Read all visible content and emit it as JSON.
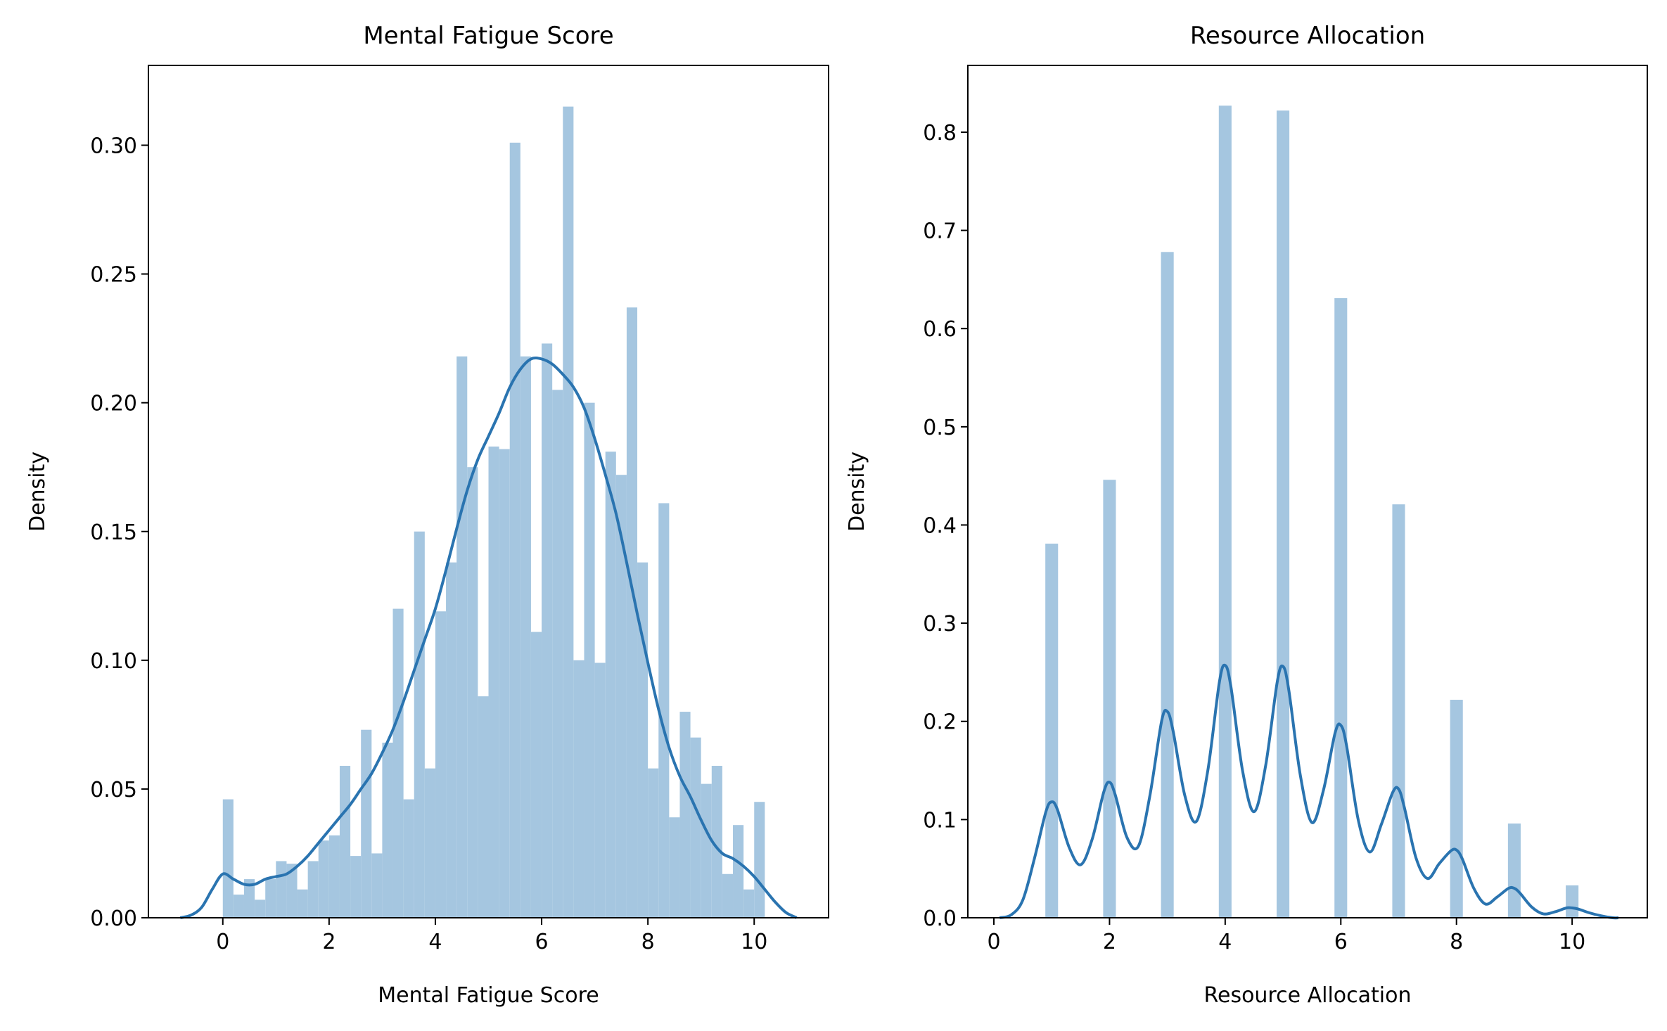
{
  "chart_data": [
    {
      "type": "bar",
      "title": "Mental Fatigue Score",
      "xlabel": "Mental Fatigue Score",
      "ylabel": "Density",
      "xlim": [
        -1.4,
        11.4
      ],
      "ylim": [
        0,
        0.331
      ],
      "xticks": [
        0,
        2,
        4,
        6,
        8,
        10
      ],
      "xtick_labels": [
        "0",
        "2",
        "4",
        "6",
        "8",
        "10"
      ],
      "yticks": [
        0,
        0.05,
        0.1,
        0.15,
        0.2,
        0.25,
        0.3
      ],
      "ytick_labels": [
        "0.00",
        "0.05",
        "0.10",
        "0.15",
        "0.20",
        "0.25",
        "0.30"
      ],
      "bar_color": "#a5c6e0",
      "line_color": "#2a74b0",
      "bins": {
        "start": 0.0,
        "width": 0.2,
        "values": [
          0.046,
          0.009,
          0.015,
          0.007,
          0.015,
          0.022,
          0.021,
          0.011,
          0.022,
          0.03,
          0.032,
          0.059,
          0.024,
          0.073,
          0.025,
          0.068,
          0.12,
          0.046,
          0.15,
          0.058,
          0.119,
          0.138,
          0.218,
          0.175,
          0.086,
          0.183,
          0.182,
          0.301,
          0.218,
          0.111,
          0.223,
          0.205,
          0.315,
          0.1,
          0.2,
          0.099,
          0.181,
          0.172,
          0.237,
          0.138,
          0.058,
          0.161,
          0.039,
          0.08,
          0.07,
          0.052,
          0.059,
          0.017,
          0.036,
          0.011,
          0.045
        ]
      },
      "kde": {
        "x": [
          -0.8,
          -0.6,
          -0.4,
          -0.2,
          0.0,
          0.2,
          0.4,
          0.6,
          0.8,
          1.0,
          1.2,
          1.4,
          1.6,
          1.8,
          2.0,
          2.2,
          2.4,
          2.6,
          2.8,
          3.0,
          3.2,
          3.4,
          3.6,
          3.8,
          4.0,
          4.2,
          4.4,
          4.6,
          4.8,
          5.0,
          5.2,
          5.4,
          5.6,
          5.8,
          6.0,
          6.2,
          6.4,
          6.6,
          6.8,
          7.0,
          7.2,
          7.4,
          7.6,
          7.8,
          8.0,
          8.2,
          8.4,
          8.6,
          8.8,
          9.0,
          9.2,
          9.4,
          9.6,
          9.8,
          10.0,
          10.2,
          10.4,
          10.6,
          10.8
        ],
        "y": [
          0.0,
          0.001,
          0.004,
          0.011,
          0.017,
          0.015,
          0.013,
          0.013,
          0.015,
          0.016,
          0.017,
          0.02,
          0.024,
          0.029,
          0.034,
          0.039,
          0.044,
          0.05,
          0.056,
          0.064,
          0.073,
          0.084,
          0.096,
          0.108,
          0.12,
          0.135,
          0.151,
          0.166,
          0.178,
          0.187,
          0.196,
          0.206,
          0.213,
          0.217,
          0.217,
          0.215,
          0.211,
          0.206,
          0.198,
          0.186,
          0.172,
          0.157,
          0.138,
          0.118,
          0.099,
          0.081,
          0.066,
          0.055,
          0.047,
          0.038,
          0.03,
          0.025,
          0.023,
          0.02,
          0.016,
          0.011,
          0.006,
          0.002,
          0.0
        ]
      }
    },
    {
      "type": "bar",
      "title": "Resource Allocation",
      "xlabel": "Resource Allocation",
      "ylabel": "Density",
      "xlim": [
        -0.45,
        11.3
      ],
      "ylim": [
        0,
        0.868
      ],
      "xticks": [
        0,
        2,
        4,
        6,
        8,
        10
      ],
      "xtick_labels": [
        "0",
        "2",
        "4",
        "6",
        "8",
        "10"
      ],
      "yticks": [
        0,
        0.1,
        0.2,
        0.3,
        0.4,
        0.5,
        0.6,
        0.7,
        0.8
      ],
      "ytick_labels": [
        "0.0",
        "0.1",
        "0.2",
        "0.3",
        "0.4",
        "0.5",
        "0.6",
        "0.7",
        "0.8"
      ],
      "bar_color": "#a5c6e0",
      "line_color": "#2a74b0",
      "bars": {
        "width": 0.22,
        "x": [
          1,
          2,
          3,
          4,
          5,
          6,
          7,
          8,
          9,
          10
        ],
        "values": [
          0.381,
          0.446,
          0.678,
          0.827,
          0.822,
          0.631,
          0.421,
          0.222,
          0.096,
          0.033
        ]
      },
      "kde": {
        "x": [
          0.1,
          0.3,
          0.5,
          0.7,
          0.9,
          1.0,
          1.1,
          1.3,
          1.5,
          1.7,
          1.9,
          2.0,
          2.1,
          2.3,
          2.5,
          2.7,
          2.9,
          3.0,
          3.1,
          3.3,
          3.5,
          3.7,
          3.9,
          4.0,
          4.1,
          4.3,
          4.5,
          4.7,
          4.9,
          5.0,
          5.1,
          5.3,
          5.5,
          5.7,
          5.9,
          6.0,
          6.1,
          6.3,
          6.5,
          6.7,
          6.9,
          7.0,
          7.1,
          7.3,
          7.5,
          7.7,
          7.9,
          8.0,
          8.1,
          8.3,
          8.5,
          8.7,
          8.9,
          9.0,
          9.1,
          9.3,
          9.5,
          9.7,
          9.9,
          10.0,
          10.1,
          10.3,
          10.5,
          10.7,
          10.8
        ],
        "y": [
          0.0,
          0.003,
          0.018,
          0.06,
          0.108,
          0.118,
          0.11,
          0.072,
          0.054,
          0.08,
          0.128,
          0.138,
          0.125,
          0.082,
          0.073,
          0.125,
          0.2,
          0.21,
          0.19,
          0.125,
          0.098,
          0.15,
          0.24,
          0.257,
          0.235,
          0.15,
          0.108,
          0.155,
          0.24,
          0.256,
          0.232,
          0.145,
          0.097,
          0.13,
          0.188,
          0.196,
          0.175,
          0.1,
          0.067,
          0.095,
          0.128,
          0.131,
          0.112,
          0.061,
          0.04,
          0.055,
          0.068,
          0.069,
          0.06,
          0.03,
          0.014,
          0.021,
          0.03,
          0.03,
          0.025,
          0.011,
          0.004,
          0.006,
          0.01,
          0.01,
          0.009,
          0.005,
          0.002,
          0.0,
          0.0
        ]
      }
    }
  ]
}
